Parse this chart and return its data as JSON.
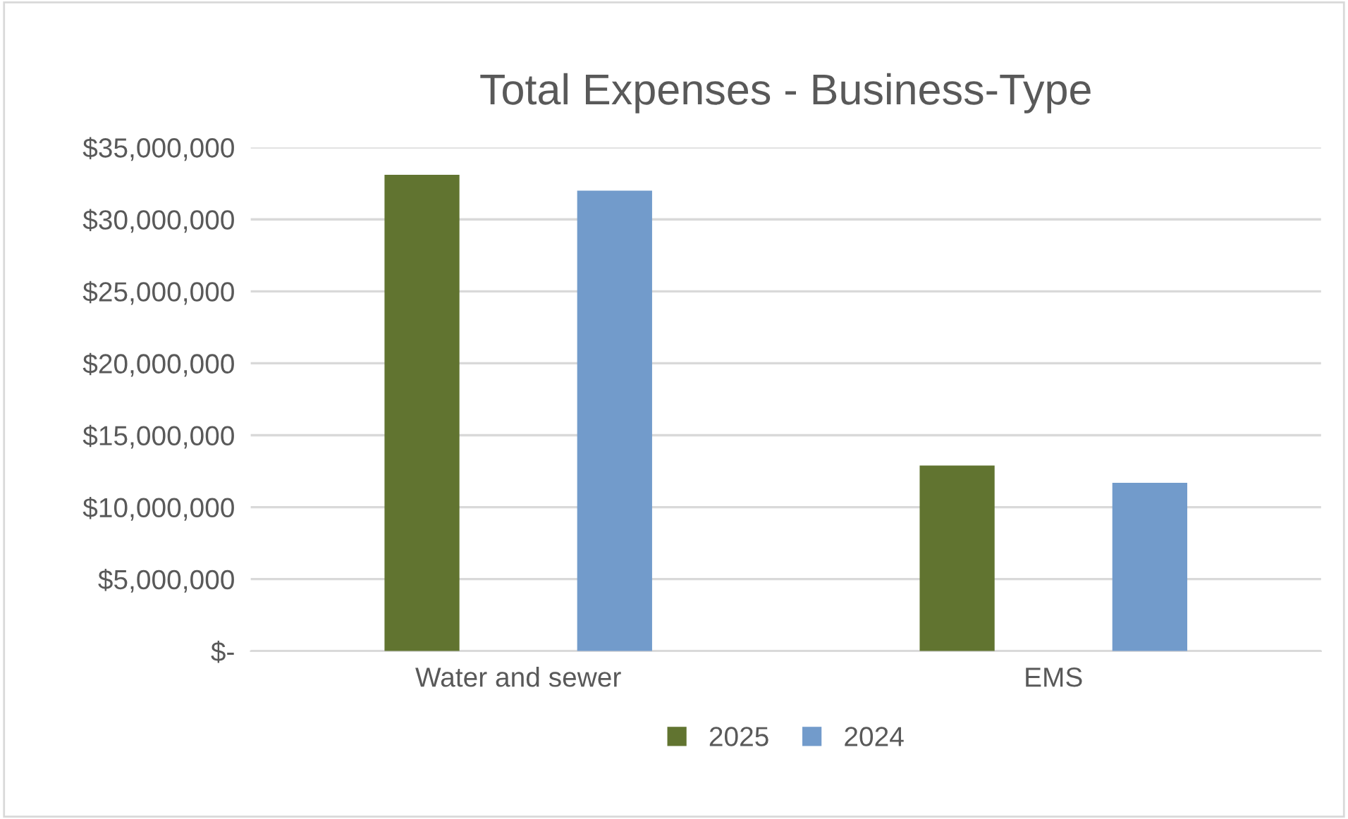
{
  "chart_data": {
    "type": "bar",
    "title": "Total Expenses - Business-Type",
    "categories": [
      "Water and sewer",
      "EMS"
    ],
    "series": [
      {
        "name": "2025",
        "color": "#617430",
        "values": [
          33100000,
          12900000
        ]
      },
      {
        "name": "2024",
        "color": "#729bcb",
        "values": [
          32000000,
          11700000
        ]
      }
    ],
    "ylim": [
      0,
      35000000
    ],
    "yticks": [
      {
        "value": 0,
        "label": "$-"
      },
      {
        "value": 5000000,
        "label": "$5,000,000"
      },
      {
        "value": 10000000,
        "label": "$10,000,000"
      },
      {
        "value": 15000000,
        "label": "$15,000,000"
      },
      {
        "value": 20000000,
        "label": "$20,000,000"
      },
      {
        "value": 25000000,
        "label": "$25,000,000"
      },
      {
        "value": 30000000,
        "label": "$30,000,000"
      },
      {
        "value": 35000000,
        "label": "$35,000,000"
      }
    ],
    "grid": "y",
    "legend": "bottom"
  }
}
